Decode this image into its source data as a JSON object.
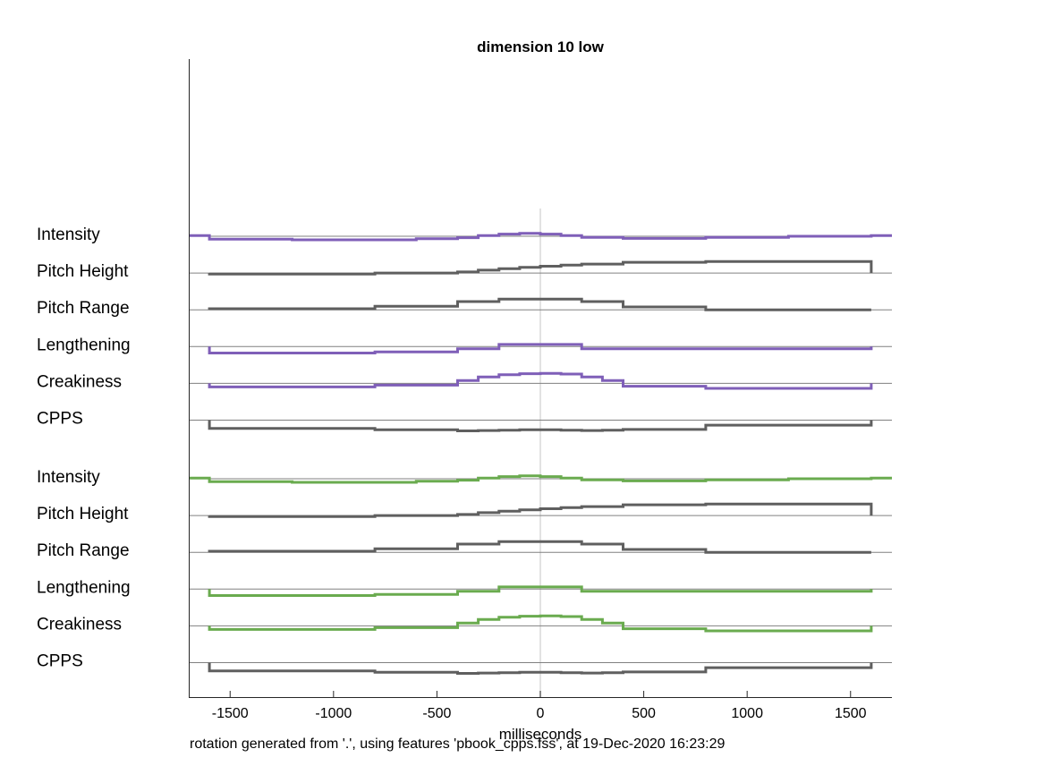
{
  "chart_data": {
    "type": "line",
    "title": "dimension 10 low",
    "xlabel": "milliseconds",
    "ylabel": "",
    "xlim": [
      -1700,
      1700
    ],
    "xticks": [
      -1500,
      -1000,
      -500,
      0,
      500,
      1000,
      1500
    ],
    "xtick_labels": [
      "-1500",
      "-1000",
      "-500",
      "0",
      "500",
      "1000",
      "1500"
    ],
    "footer": "rotation generated from '.', using features 'pbook_cpps.fss', at 19-Dec-2020 16:23:29",
    "colors": {
      "purple": "#7f5fb8",
      "green": "#6aab4f",
      "gray": "#5f5f5f",
      "baseline": "#808080",
      "zero_line": "#d9d9d9"
    },
    "groups": [
      {
        "accent": "purple",
        "rows": [
          {
            "label": "Intensity",
            "color": "purple",
            "x": [
              -1700,
              -1600,
              -1600,
              -1200,
              -1200,
              -600,
              -600,
              -400,
              -400,
              -300,
              -300,
              -200,
              -200,
              -100,
              -100,
              0,
              0,
              100,
              100,
              200,
              200,
              400,
              400,
              800,
              800,
              1200,
              1200,
              1600,
              1600,
              1700
            ],
            "y": [
              0.2,
              0.2,
              -0.8,
              -0.8,
              -1.0,
              -1.0,
              -0.7,
              -0.7,
              -0.4,
              -0.4,
              0.2,
              0.2,
              0.6,
              0.6,
              0.8,
              0.8,
              0.6,
              0.6,
              0.2,
              0.2,
              -0.3,
              -0.3,
              -0.6,
              -0.6,
              -0.3,
              -0.3,
              0.0,
              0.0,
              0.2,
              0.2
            ]
          },
          {
            "label": "Pitch Height",
            "color": "gray",
            "x": [
              -1600,
              -1600,
              -800,
              -800,
              -400,
              -400,
              -300,
              -300,
              -200,
              -200,
              -100,
              -100,
              0,
              0,
              100,
              100,
              200,
              200,
              400,
              400,
              800,
              800,
              1600,
              1600
            ],
            "y": [
              0,
              -0.3,
              -0.3,
              0.0,
              0.0,
              0.3,
              0.3,
              0.8,
              0.8,
              1.2,
              1.2,
              1.6,
              1.6,
              1.9,
              1.9,
              2.2,
              2.2,
              2.5,
              2.5,
              3.0,
              3.0,
              3.2,
              3.2,
              0
            ]
          },
          {
            "label": "Pitch Range",
            "color": "gray",
            "x": [
              -1600,
              -1600,
              -800,
              -800,
              -400,
              -400,
              -200,
              -200,
              200,
              200,
              400,
              400,
              800,
              800,
              1600,
              1600
            ],
            "y": [
              0,
              0.3,
              0.3,
              1.0,
              1.0,
              2.3,
              2.3,
              3.0,
              3.0,
              2.3,
              2.3,
              0.8,
              0.8,
              0.0,
              0.0,
              0
            ]
          },
          {
            "label": "Lengthening",
            "color": "purple",
            "x": [
              -1600,
              -1600,
              -800,
              -800,
              -400,
              -400,
              -200,
              -200,
              200,
              200,
              1600,
              1600
            ],
            "y": [
              0,
              -1.8,
              -1.8,
              -1.5,
              -1.5,
              -0.6,
              -0.6,
              0.6,
              0.6,
              -0.6,
              -0.6,
              0
            ]
          },
          {
            "label": "Creakiness",
            "color": "purple",
            "x": [
              -1600,
              -1600,
              -800,
              -800,
              -400,
              -400,
              -300,
              -300,
              -200,
              -200,
              -100,
              -100,
              0,
              0,
              100,
              100,
              200,
              200,
              300,
              300,
              400,
              400,
              800,
              800,
              1600,
              1600
            ],
            "y": [
              0,
              -1.0,
              -1.0,
              -0.5,
              -0.5,
              0.8,
              0.8,
              1.8,
              1.8,
              2.4,
              2.4,
              2.7,
              2.7,
              2.8,
              2.8,
              2.6,
              2.6,
              1.8,
              1.8,
              0.8,
              0.8,
              -0.8,
              -0.8,
              -1.4,
              -1.4,
              0
            ]
          },
          {
            "label": "CPPS",
            "color": "gray",
            "x": [
              -1600,
              -1600,
              -800,
              -800,
              -400,
              -400,
              -300,
              -300,
              -200,
              -200,
              -100,
              -100,
              100,
              100,
              200,
              200,
              300,
              300,
              400,
              400,
              800,
              800,
              1600,
              1600
            ],
            "y": [
              0,
              -2.3,
              -2.3,
              -2.7,
              -2.7,
              -3.0,
              -3.0,
              -2.9,
              -2.9,
              -2.8,
              -2.8,
              -2.7,
              -2.7,
              -2.8,
              -2.8,
              -2.9,
              -2.9,
              -2.8,
              -2.8,
              -2.6,
              -2.6,
              -1.4,
              -1.4,
              0
            ]
          }
        ]
      },
      {
        "accent": "green",
        "rows": [
          {
            "label": "Intensity",
            "color": "green",
            "x": [
              -1700,
              -1600,
              -1600,
              -1200,
              -1200,
              -600,
              -600,
              -400,
              -400,
              -300,
              -300,
              -200,
              -200,
              -100,
              -100,
              0,
              0,
              100,
              100,
              200,
              200,
              400,
              400,
              800,
              800,
              1200,
              1200,
              1600,
              1600,
              1700
            ],
            "y": [
              0.2,
              0.2,
              -0.8,
              -0.8,
              -1.0,
              -1.0,
              -0.7,
              -0.7,
              -0.4,
              -0.4,
              0.2,
              0.2,
              0.6,
              0.6,
              0.8,
              0.8,
              0.6,
              0.6,
              0.2,
              0.2,
              -0.3,
              -0.3,
              -0.6,
              -0.6,
              -0.3,
              -0.3,
              0.0,
              0.0,
              0.2,
              0.2
            ]
          },
          {
            "label": "Pitch Height",
            "color": "gray",
            "x": [
              -1600,
              -1600,
              -800,
              -800,
              -400,
              -400,
              -300,
              -300,
              -200,
              -200,
              -100,
              -100,
              0,
              0,
              100,
              100,
              200,
              200,
              400,
              400,
              800,
              800,
              1600,
              1600
            ],
            "y": [
              0,
              -0.3,
              -0.3,
              0.0,
              0.0,
              0.3,
              0.3,
              0.8,
              0.8,
              1.2,
              1.2,
              1.6,
              1.6,
              1.9,
              1.9,
              2.2,
              2.2,
              2.5,
              2.5,
              3.0,
              3.0,
              3.2,
              3.2,
              0
            ]
          },
          {
            "label": "Pitch Range",
            "color": "gray",
            "x": [
              -1600,
              -1600,
              -800,
              -800,
              -400,
              -400,
              -200,
              -200,
              200,
              200,
              400,
              400,
              800,
              800,
              1600,
              1600
            ],
            "y": [
              0,
              0.3,
              0.3,
              1.0,
              1.0,
              2.3,
              2.3,
              3.0,
              3.0,
              2.3,
              2.3,
              0.8,
              0.8,
              0.0,
              0.0,
              0
            ]
          },
          {
            "label": "Lengthening",
            "color": "green",
            "x": [
              -1600,
              -1600,
              -800,
              -800,
              -400,
              -400,
              -200,
              -200,
              200,
              200,
              1600,
              1600
            ],
            "y": [
              0,
              -1.8,
              -1.8,
              -1.5,
              -1.5,
              -0.6,
              -0.6,
              0.6,
              0.6,
              -0.6,
              -0.6,
              0
            ]
          },
          {
            "label": "Creakiness",
            "color": "green",
            "x": [
              -1600,
              -1600,
              -800,
              -800,
              -400,
              -400,
              -300,
              -300,
              -200,
              -200,
              -100,
              -100,
              0,
              0,
              100,
              100,
              200,
              200,
              300,
              300,
              400,
              400,
              800,
              800,
              1600,
              1600
            ],
            "y": [
              0,
              -1.0,
              -1.0,
              -0.5,
              -0.5,
              0.8,
              0.8,
              1.8,
              1.8,
              2.4,
              2.4,
              2.7,
              2.7,
              2.8,
              2.8,
              2.6,
              2.6,
              1.8,
              1.8,
              0.8,
              0.8,
              -0.8,
              -0.8,
              -1.4,
              -1.4,
              0
            ]
          },
          {
            "label": "CPPS",
            "color": "gray",
            "x": [
              -1600,
              -1600,
              -800,
              -800,
              -400,
              -400,
              -300,
              -300,
              -200,
              -200,
              -100,
              -100,
              100,
              100,
              200,
              200,
              300,
              300,
              400,
              400,
              800,
              800,
              1600,
              1600
            ],
            "y": [
              0,
              -2.3,
              -2.3,
              -2.7,
              -2.7,
              -3.0,
              -3.0,
              -2.9,
              -2.9,
              -2.8,
              -2.8,
              -2.7,
              -2.7,
              -2.8,
              -2.8,
              -2.9,
              -2.9,
              -2.8,
              -2.8,
              -2.6,
              -2.6,
              -1.4,
              -1.4,
              0
            ]
          }
        ]
      }
    ]
  }
}
